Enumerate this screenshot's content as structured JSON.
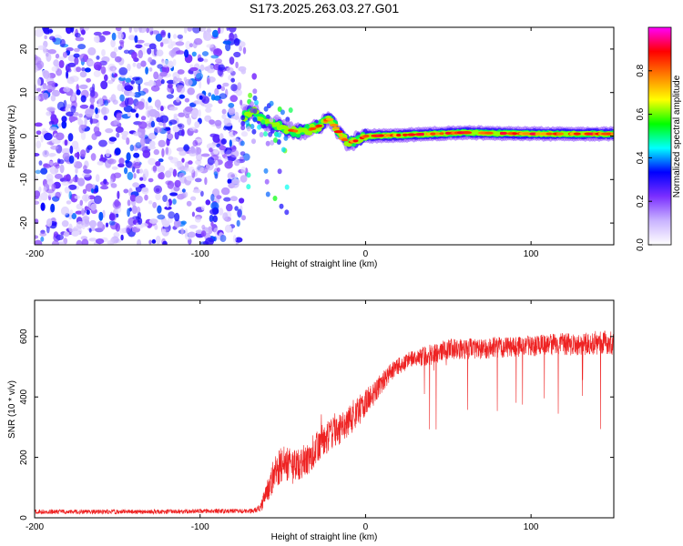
{
  "figure_title": "S173.2025.263.03.27.G01",
  "chart_data": [
    {
      "type": "heatmap",
      "name": "spectrogram",
      "xlabel": "Height of straight line (km)",
      "ylabel": "Frequency (Hz)",
      "xlim": [
        -200,
        150
      ],
      "ylim": [
        -25,
        25
      ],
      "xticks": [
        -200,
        -100,
        0,
        100
      ],
      "xtick_labels": [
        "-200",
        "-100",
        "0",
        "100"
      ],
      "yticks": [
        -20,
        -10,
        0,
        10,
        20
      ],
      "ytick_labels": [
        "-20",
        "-10",
        "0",
        "10",
        "20"
      ],
      "noise_region_x": [
        -200,
        -73
      ],
      "signal_ridge": {
        "x": [
          -73,
          -68,
          -62,
          -55,
          -48,
          -40,
          -33,
          -27,
          -22,
          -18,
          -14,
          -10,
          -5,
          0,
          20,
          60,
          100,
          150
        ],
        "freq": [
          4.5,
          6.0,
          3.5,
          2.5,
          1.5,
          1.0,
          1.5,
          2.5,
          4.0,
          2.0,
          -0.5,
          -1.5,
          -1.0,
          0.0,
          0.2,
          0.8,
          0.5,
          0.5
        ]
      },
      "colorbar": {
        "label": "Normalized spectral amplitude",
        "ticks": [
          0.0,
          0.2,
          0.4,
          0.6,
          0.8
        ],
        "tick_labels": [
          "0.0",
          "0.2",
          "0.4",
          "0.6",
          "0.8"
        ],
        "range": [
          0,
          1
        ],
        "colors": [
          "#ffffff",
          "#c9b3ff",
          "#7b2fff",
          "#0000ff",
          "#00ffff",
          "#00ff00",
          "#ffff00",
          "#ff8000",
          "#ff0000",
          "#ff00ff"
        ]
      }
    },
    {
      "type": "line",
      "name": "snr",
      "xlabel": "Height of straight line (km)",
      "ylabel": "SNR (10 * v/v)",
      "xlim": [
        -200,
        150
      ],
      "ylim": [
        0,
        720
      ],
      "xticks": [
        -200,
        -100,
        0,
        100
      ],
      "xtick_labels": [
        "-200",
        "-100",
        "0",
        "100"
      ],
      "yticks": [
        0,
        200,
        400,
        600
      ],
      "ytick_labels": [
        "0",
        "200",
        "400",
        "600"
      ],
      "color": "#ee2222",
      "series": [
        {
          "name": "SNR",
          "x": [
            -200,
            -180,
            -160,
            -140,
            -120,
            -100,
            -80,
            -70,
            -64,
            -60,
            -55,
            -50,
            -45,
            -40,
            -35,
            -30,
            -25,
            -20,
            -15,
            -10,
            -5,
            0,
            5,
            10,
            15,
            20,
            25,
            30,
            40,
            50,
            60,
            70,
            80,
            90,
            100,
            110,
            120,
            130,
            140,
            150
          ],
          "values": [
            20,
            20,
            20,
            20,
            20,
            22,
            22,
            22,
            30,
            80,
            150,
            180,
            170,
            180,
            200,
            230,
            260,
            280,
            300,
            320,
            350,
            380,
            410,
            450,
            480,
            500,
            520,
            530,
            540,
            560,
            560,
            560,
            565,
            565,
            570,
            570,
            575,
            575,
            580,
            580
          ],
          "spread": [
            15,
            15,
            15,
            15,
            15,
            15,
            15,
            15,
            30,
            80,
            110,
            120,
            120,
            120,
            120,
            110,
            110,
            100,
            110,
            110,
            110,
            90,
            80,
            70,
            60,
            60,
            60,
            60,
            70,
            70,
            70,
            70,
            70,
            70,
            70,
            75,
            75,
            75,
            80,
            80
          ]
        }
      ]
    }
  ]
}
